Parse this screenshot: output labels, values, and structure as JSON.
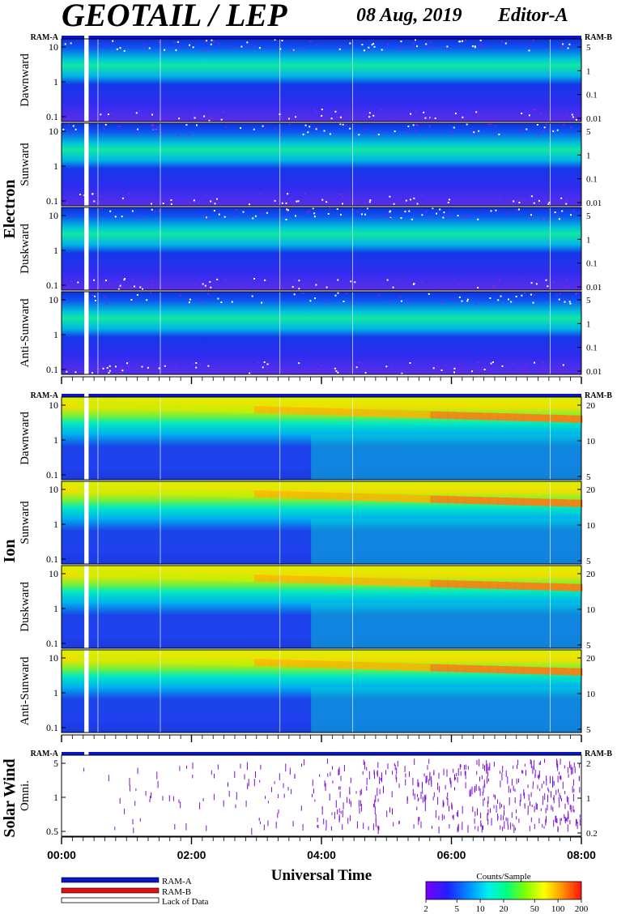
{
  "header": {
    "title": "GEOTAIL / LEP",
    "date": "08 Aug, 2019",
    "editor": "Editor-A"
  },
  "colors": {
    "ram_a": "#0a14c8",
    "ram_b": "#e01010",
    "lack_of_data": "#ffffff"
  },
  "chart_data": {
    "type": "heatmap",
    "xlabel": "Universal Time",
    "x_ticks": [
      "00:00",
      "02:00",
      "04:00",
      "06:00",
      "08:00"
    ],
    "xlim": [
      "00:00",
      "08:00"
    ],
    "colorbar": {
      "label": "Counts/Sample",
      "ticks": [
        "2",
        "5",
        "10",
        "20",
        "50",
        "100",
        "200"
      ],
      "range": [
        2,
        200
      ],
      "scale": "log"
    },
    "ram_labels": {
      "left": "RAM-A",
      "right": "RAM-B"
    },
    "groups": [
      {
        "name": "Electron",
        "panels": [
          {
            "label": "Dawnward",
            "left_ticks": [
              "10",
              "1",
              "0.1"
            ],
            "right_ticks": [
              "5",
              "1",
              "0.1",
              "0.01"
            ]
          },
          {
            "label": "Sunward",
            "left_ticks": [
              "10",
              "1",
              "0.1"
            ],
            "right_ticks": [
              "5",
              "1",
              "0.1",
              "0.01"
            ]
          },
          {
            "label": "Duskward",
            "left_ticks": [
              "10",
              "1",
              "0.1"
            ],
            "right_ticks": [
              "5",
              "1",
              "0.1",
              "0.01"
            ]
          },
          {
            "label": "Anti-Sunward",
            "left_ticks": [
              "10",
              "1",
              "0.1"
            ],
            "right_ticks": [
              "5",
              "1",
              "0.1",
              "0.01"
            ]
          }
        ]
      },
      {
        "name": "Ion",
        "panels": [
          {
            "label": "Dawnward",
            "left_ticks": [
              "10",
              "1",
              "0.1"
            ],
            "right_ticks": [
              "20",
              "10",
              "5"
            ]
          },
          {
            "label": "Sunward",
            "left_ticks": [
              "10",
              "1",
              "0.1"
            ],
            "right_ticks": [
              "20",
              "10",
              "5"
            ]
          },
          {
            "label": "Duskward",
            "left_ticks": [
              "10",
              "1",
              "0.1"
            ],
            "right_ticks": [
              "20",
              "10",
              "5"
            ]
          },
          {
            "label": "Anti-Sunward",
            "left_ticks": [
              "10",
              "1",
              "0.1"
            ],
            "right_ticks": [
              "20",
              "10",
              "5"
            ]
          }
        ]
      },
      {
        "name": "Solar Wind",
        "panels": [
          {
            "label": "Omni.",
            "left_ticks": [
              "5",
              "1",
              "0.5"
            ],
            "right_ticks": [
              "2",
              "1",
              "0.2"
            ]
          }
        ]
      }
    ],
    "data_gap": {
      "start": "00:21",
      "end": "00:25"
    },
    "legend": [
      {
        "key": "ram_a",
        "label": "RAM-A"
      },
      {
        "key": "ram_b",
        "label": "RAM-B"
      },
      {
        "key": "lack_of_data",
        "label": "Lack of Data"
      }
    ]
  }
}
